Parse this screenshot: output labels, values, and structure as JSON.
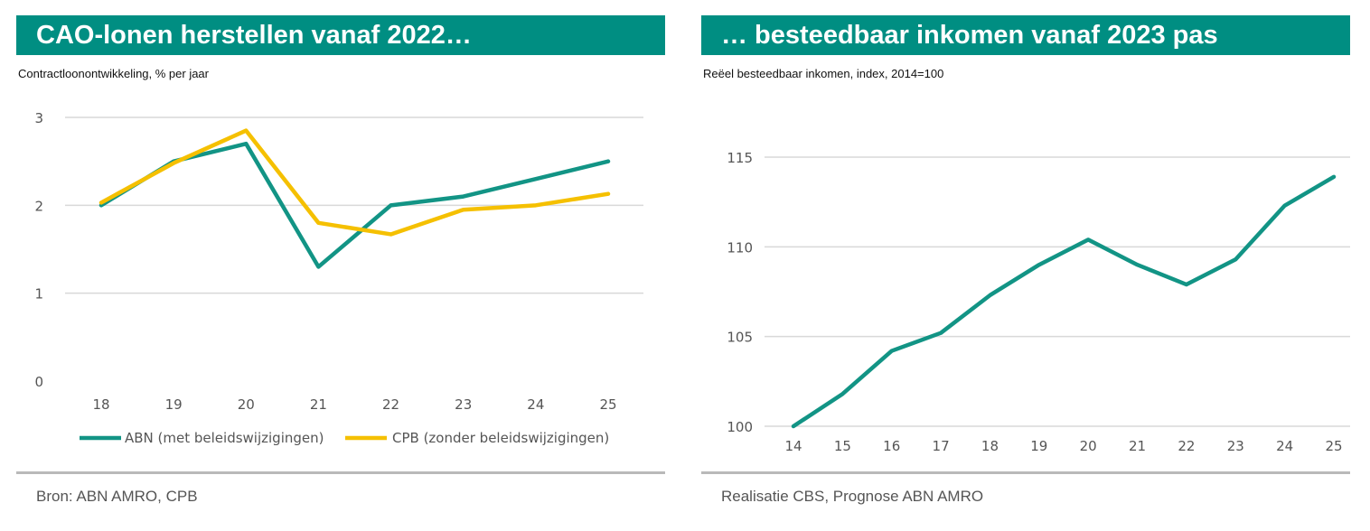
{
  "colors": {
    "header_bg": "#008E82",
    "abn": "#129485",
    "cpb": "#F5C000",
    "grid": "#d9d9d9",
    "text": "#555555"
  },
  "left": {
    "title": "CAO-lonen herstellen vanaf 2022…",
    "subtitle": "Contractloonontwikkeling, % per jaar",
    "source": "Bron: ABN AMRO, CPB"
  },
  "right": {
    "title": "… besteedbaar inkomen vanaf 2023 pas",
    "subtitle": "Reëel besteedbaar inkomen, index, 2014=100",
    "source": "Realisatie CBS, Prognose ABN AMRO"
  },
  "chart_data": [
    {
      "type": "line",
      "title": "CAO-lonen herstellen vanaf 2022…",
      "ylabel": "Contractloonontwikkeling, % per jaar",
      "categories": [
        "18",
        "19",
        "20",
        "21",
        "22",
        "23",
        "24",
        "25"
      ],
      "ylim": [
        0,
        3
      ],
      "yticks": [
        "0",
        "1",
        "2",
        "3"
      ],
      "grid": true,
      "legend": "bottom",
      "series": [
        {
          "name": "ABN (met beleidswijzigingen)",
          "values": [
            2.0,
            2.5,
            2.7,
            1.3,
            2.0,
            2.1,
            2.3,
            2.5
          ]
        },
        {
          "name": "CPB (zonder beleidswijzigingen)",
          "values": [
            2.03,
            2.48,
            2.85,
            1.8,
            1.67,
            1.95,
            2.0,
            2.13
          ]
        }
      ]
    },
    {
      "type": "line",
      "title": "… besteedbaar inkomen vanaf 2023 pas",
      "ylabel": "Reëel besteedbaar inkomen, index, 2014=100",
      "categories": [
        "14",
        "15",
        "16",
        "17",
        "18",
        "19",
        "20",
        "21",
        "22",
        "23",
        "24",
        "25"
      ],
      "ylim": [
        100,
        115
      ],
      "yticks": [
        "100",
        "105",
        "110",
        "115"
      ],
      "grid": true,
      "series": [
        {
          "name": "Reëel besteedbaar inkomen",
          "values": [
            100.0,
            101.8,
            104.2,
            105.2,
            107.3,
            109.0,
            110.4,
            109.0,
            107.9,
            109.3,
            112.3,
            113.9
          ]
        }
      ]
    }
  ]
}
